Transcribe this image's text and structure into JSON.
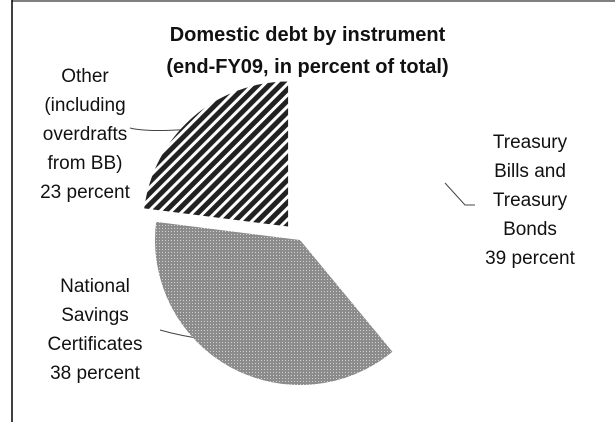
{
  "chart_data": {
    "type": "pie",
    "title": "Domestic debt by instrument",
    "subtitle": "(end-FY09, in percent of total)",
    "categories": [
      "Treasury Bills and Treasury Bonds",
      "National Savings Certificates",
      "Other (including overdrafts from BB)"
    ],
    "values": [
      39,
      38,
      23
    ],
    "value_labels": [
      "39 percent",
      "38 percent",
      "23 percent"
    ],
    "colors": [
      "#ffffff",
      "#9a9a9a",
      "#222222"
    ],
    "patterns": [
      "none",
      "dots",
      "hatch"
    ],
    "exploded": [
      false,
      false,
      true
    ]
  }
}
